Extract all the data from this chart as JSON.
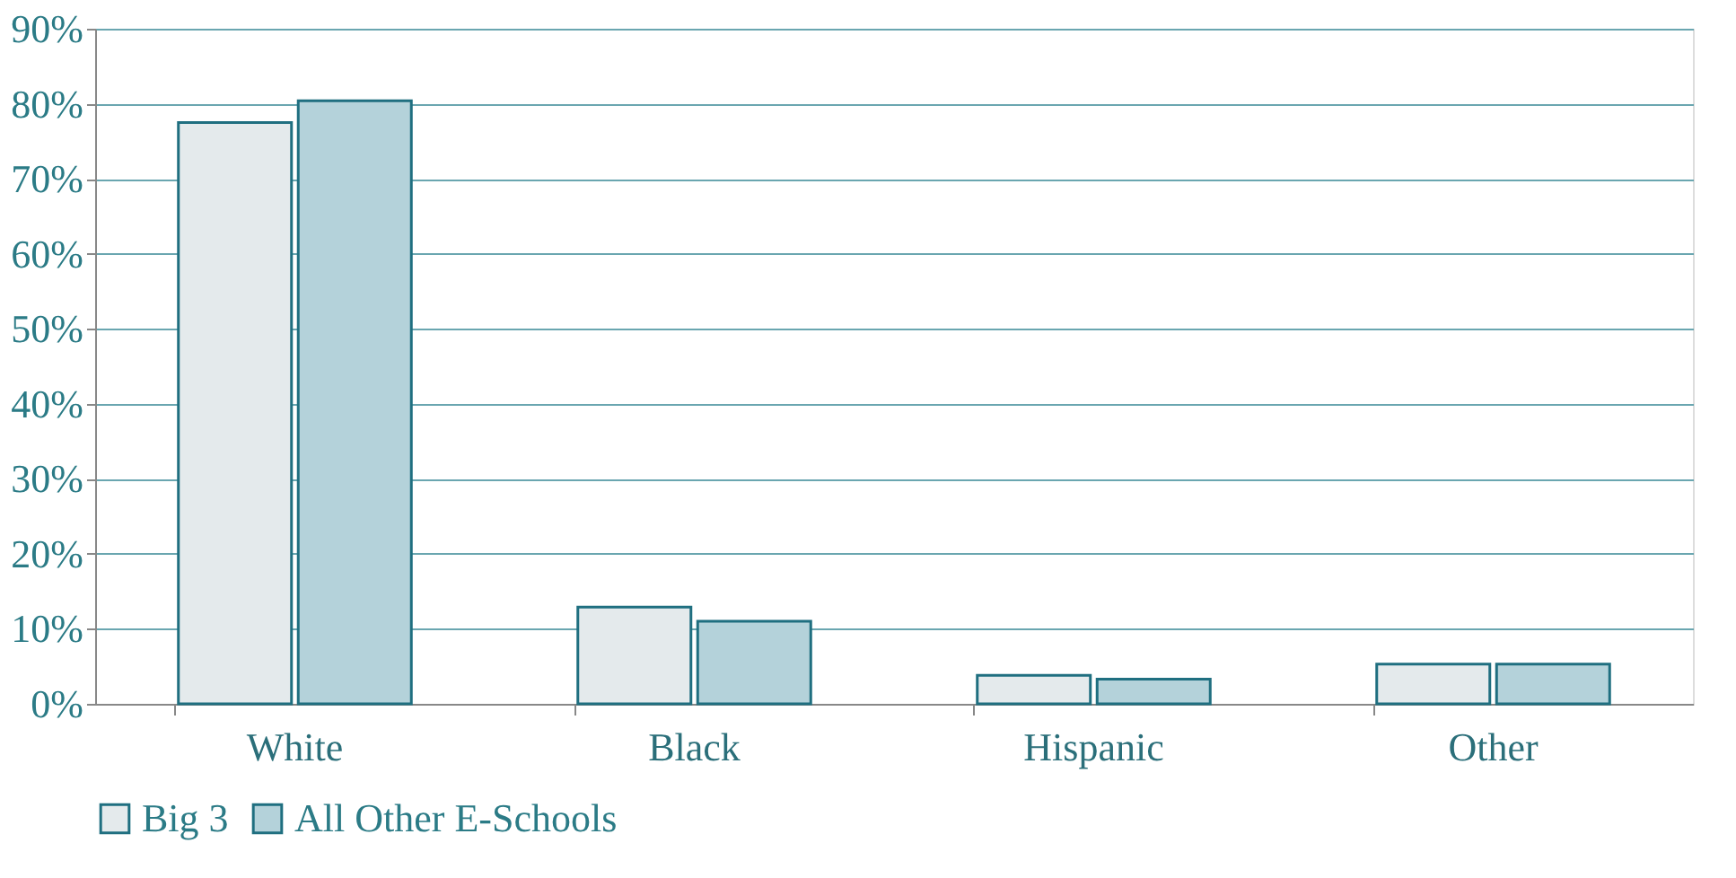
{
  "chart_data": {
    "type": "bar",
    "categories": [
      "White",
      "Black",
      "Hispanic",
      "Other"
    ],
    "series": [
      {
        "name": "Big 3",
        "color": "#e4eaec",
        "values": [
          77.5,
          12.9,
          3.8,
          5.3
        ]
      },
      {
        "name": "All Other E-Schools",
        "color": "#b4d2da",
        "values": [
          80.4,
          11.0,
          3.3,
          5.3
        ]
      }
    ],
    "ylim": [
      0,
      90
    ],
    "yticks": [
      {
        "value": 0,
        "label": "0%"
      },
      {
        "value": 10,
        "label": "10%"
      },
      {
        "value": 20,
        "label": "20%"
      },
      {
        "value": 30,
        "label": "30%"
      },
      {
        "value": 40,
        "label": "40%"
      },
      {
        "value": 50,
        "label": "50%"
      },
      {
        "value": 60,
        "label": "60%"
      },
      {
        "value": 70,
        "label": "70%"
      },
      {
        "value": 80,
        "label": "80%"
      },
      {
        "value": 90,
        "label": "90%"
      }
    ],
    "grid": "y",
    "legend": "bottom"
  }
}
